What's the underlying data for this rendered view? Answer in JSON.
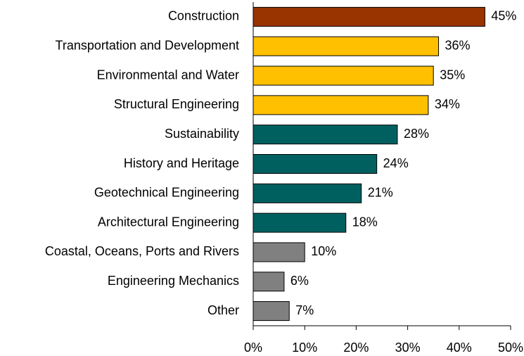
{
  "chart_data": {
    "type": "barh",
    "categories": [
      "Construction",
      "Transportation and Development",
      "Environmental and Water",
      "Structural Engineering",
      "Sustainability",
      "History and Heritage",
      "Geotechnical Engineering",
      "Architectural Engineering",
      "Coastal, Oceans, Ports and Rivers",
      "Engineering Mechanics",
      "Other"
    ],
    "values": [
      45,
      36,
      35,
      34,
      28,
      24,
      21,
      18,
      10,
      6,
      7
    ],
    "value_labels": [
      "45%",
      "36%",
      "35%",
      "34%",
      "28%",
      "24%",
      "21%",
      "18%",
      "10%",
      "6%",
      "7%"
    ],
    "colors": [
      "#993300",
      "#ffc000",
      "#ffc000",
      "#ffc000",
      "#006060",
      "#006060",
      "#006060",
      "#006060",
      "#808080",
      "#808080",
      "#808080"
    ],
    "xlim": [
      0,
      50
    ],
    "xticks": [
      {
        "value": 0,
        "label": "0%"
      },
      {
        "value": 10,
        "label": "10%"
      },
      {
        "value": 20,
        "label": "20%"
      },
      {
        "value": 30,
        "label": "30%"
      },
      {
        "value": 40,
        "label": "40%"
      },
      {
        "value": 50,
        "label": "50%"
      }
    ]
  }
}
